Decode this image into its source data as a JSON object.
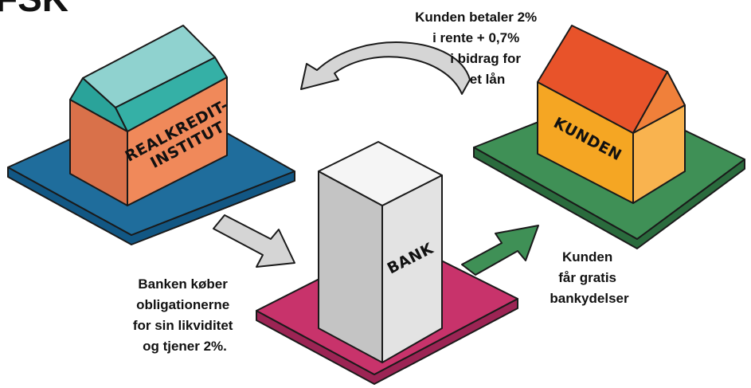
{
  "header": {
    "title": "FSK"
  },
  "nodes": [
    {
      "label": [
        "REALKREDIT-",
        "INSTITUT"
      ]
    },
    {
      "label": [
        "BANK"
      ]
    },
    {
      "label": [
        "KUNDEN"
      ]
    }
  ],
  "captions": [
    {
      "lines": [
        "Kunden betaler 2%",
        "i rente + 0,7%",
        "i bidrag for",
        "et lån"
      ]
    },
    {
      "lines": [
        "Banken køber",
        "obligationerne",
        "for sin likviditet",
        "og tjener 2%."
      ]
    },
    {
      "lines": [
        "Kunden",
        "får gratis",
        "bankydelser"
      ]
    }
  ]
}
